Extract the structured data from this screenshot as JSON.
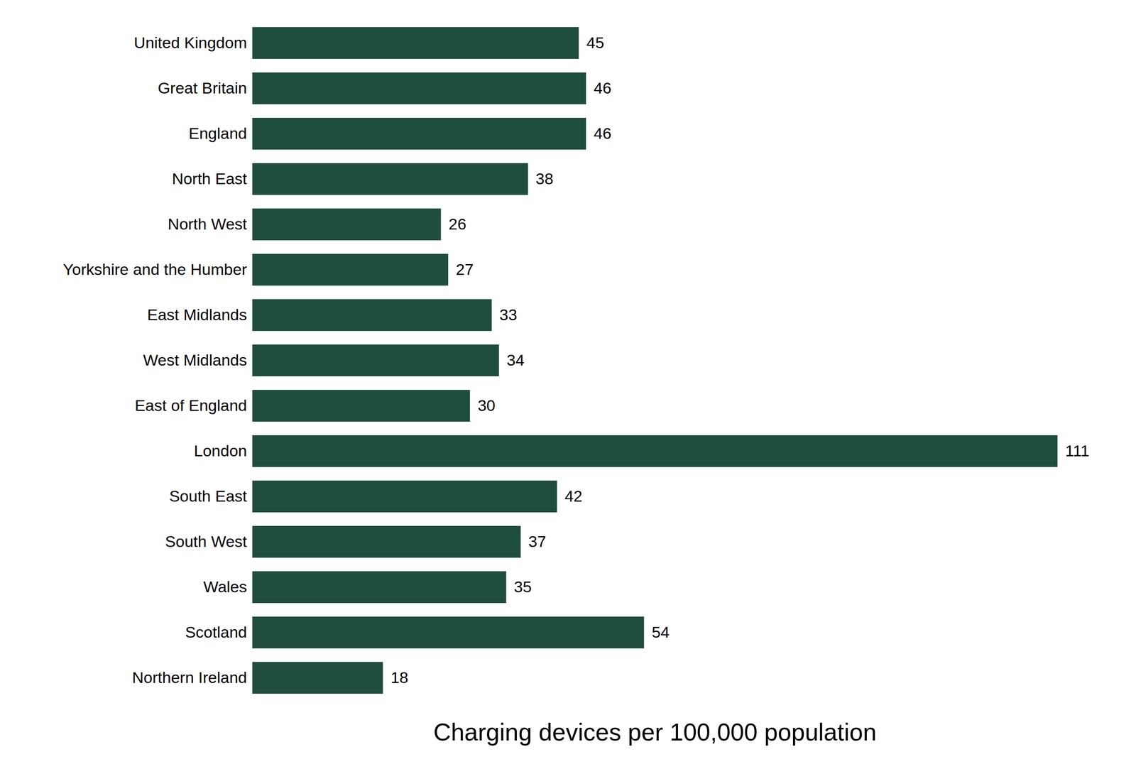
{
  "chart_data": {
    "type": "bar",
    "orientation": "horizontal",
    "x_label": "Charging devices per 100,000 population",
    "categories": [
      "United Kingdom",
      "Great Britain",
      "England",
      "North East",
      "North West",
      "Yorkshire and the Humber",
      "East Midlands",
      "West Midlands",
      "East of England",
      "London",
      "South East",
      "South West",
      "Wales",
      "Scotland",
      "Northern Ireland"
    ],
    "values": [
      45,
      46,
      46,
      38,
      26,
      27,
      33,
      34,
      30,
      111,
      42,
      37,
      35,
      54,
      18
    ],
    "color": "#1f4d3e",
    "xlim": [
      0,
      111
    ],
    "data_labels": true,
    "tick_labels": "y",
    "grid": false
  }
}
